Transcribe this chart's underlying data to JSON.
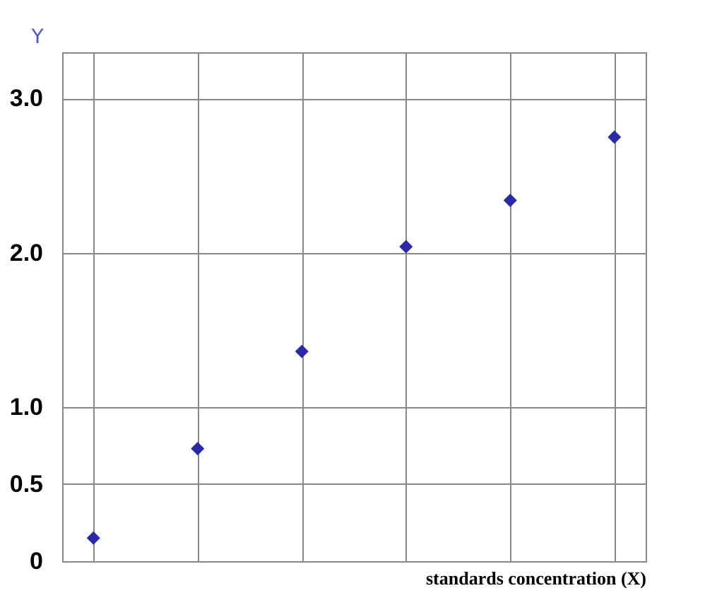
{
  "chart_data": {
    "type": "scatter",
    "xlabel": "standards concentration (X)",
    "ylabel": "Y",
    "categories": [
      null,
      null,
      null,
      null,
      null,
      null
    ],
    "series": [
      {
        "color": "#2a2aa8",
        "values": [
          0.15,
          0.73,
          1.36,
          2.04,
          2.34,
          2.75
        ]
      }
    ],
    "ylim": [
      0,
      3.3
    ],
    "yticks": [
      {
        "value": 0,
        "label": "0"
      },
      0.5,
      {
        "value": 1,
        "label": "1.0"
      },
      {
        "value": 2,
        "label": "2.0"
      },
      {
        "value": 3,
        "label": "3.0"
      }
    ],
    "grid": true,
    "marker": "diamond",
    "tick_labels": "y"
  }
}
